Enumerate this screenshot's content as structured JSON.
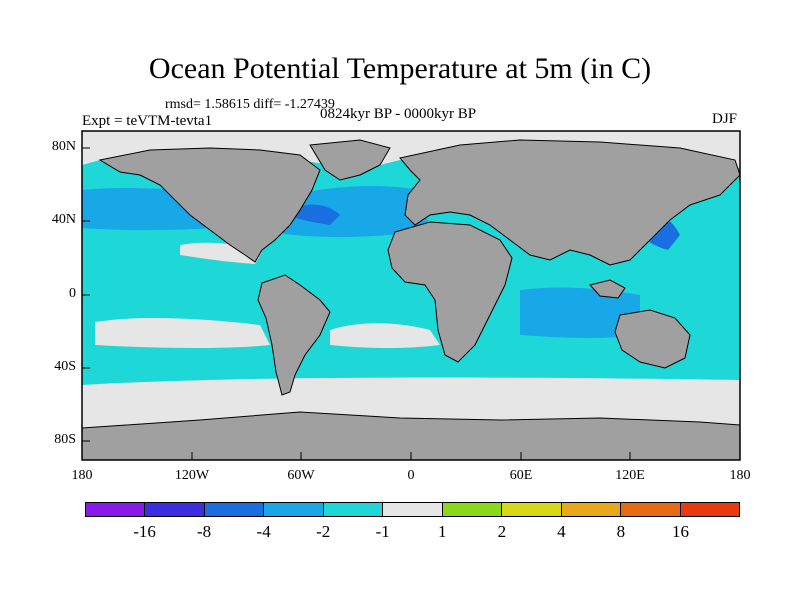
{
  "title": "Ocean Potential Temperature at 5m (in C)",
  "stats": "rmsd= 1.58615 diff= -1.27439",
  "experiment": "Expt = teVTM-tevta1",
  "period": "0824kyr BP - 0000kyr BP",
  "season": "DJF",
  "map": {
    "projection": "cylindrical equidistant",
    "lat_ticks": [
      "80N",
      "40N",
      "0",
      "40S",
      "80S"
    ],
    "lon_ticks": [
      "180",
      "120W",
      "60W",
      "0",
      "60E",
      "120E",
      "180"
    ],
    "land_color": "#a0a0a0",
    "sea_ice_color": "#e6e6e6"
  },
  "colorbar": {
    "colors": [
      "#8a1ae8",
      "#3a2ee0",
      "#1a6fe0",
      "#18a8e8",
      "#1ed8d8",
      "#e6e6e6",
      "#8ad81a",
      "#d8d81a",
      "#e8a81a",
      "#e86a10",
      "#e83a10"
    ],
    "labels": [
      "-16",
      "-8",
      "-4",
      "-2",
      "-1",
      "1",
      "2",
      "4",
      "8",
      "16"
    ]
  }
}
